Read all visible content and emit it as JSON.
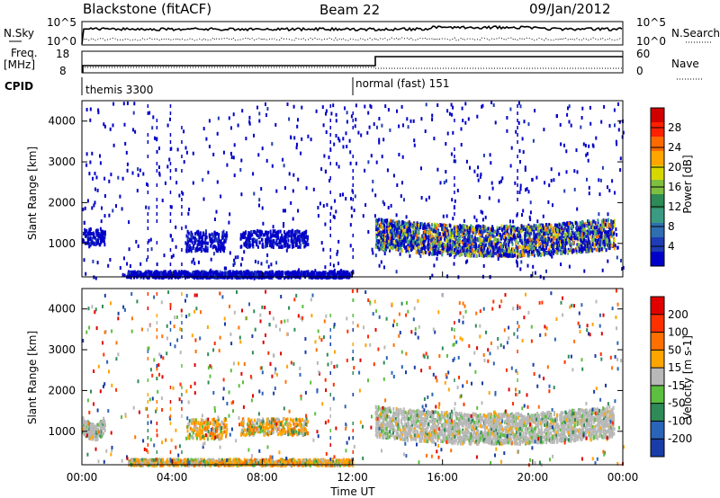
{
  "header": {
    "station": "Blackstone (fitACF)",
    "beam": "Beam 22",
    "date": "09/Jan/2012"
  },
  "params": {
    "nsky_label": "N.Sky",
    "nsky_ticks": [
      "10^5",
      "10^0"
    ],
    "nsearch_label": "N.Search",
    "nsearch_ticks": [
      "10^5",
      "10^0"
    ],
    "freq_label_1": "Freq.",
    "freq_label_2": "[MHz]",
    "freq_ticks": [
      "18",
      "8"
    ],
    "nave_label": "Nave",
    "nave_ticks": [
      "60",
      "0"
    ],
    "cpid_label": "CPID",
    "cpid_segments": [
      {
        "label": "themis 3300",
        "start_hour": 0
      },
      {
        "label": "normal (fast) 151",
        "start_hour": 12.0
      }
    ]
  },
  "chart_data": [
    {
      "type": "heatmap",
      "name": "power",
      "ylabel": "Slant Range [km]",
      "ylim": [
        180,
        4500
      ],
      "yticks": [
        "1000",
        "2000",
        "3000",
        "4000"
      ],
      "xlim": [
        0,
        24
      ],
      "colorbar": {
        "label": "Power [dB]",
        "ticks": [
          "28",
          "24",
          "20",
          "16",
          "12",
          "8",
          "4"
        ],
        "colors": [
          "#0000c8",
          "#1e3cb4",
          "#2f6eb0",
          "#3a9a82",
          "#2e8b57",
          "#7fbf3f",
          "#d7d700",
          "#ffa500",
          "#ff6a00",
          "#ff2000",
          "#d00000"
        ]
      },
      "echo_regions": [
        {
          "x": [
            0.0,
            1.0
          ],
          "range_km": [
            1000,
            1400
          ],
          "level": "low"
        },
        {
          "x": [
            4.6,
            6.4
          ],
          "range_km": [
            850,
            1350
          ],
          "level": "low"
        },
        {
          "x": [
            7.0,
            10.0
          ],
          "range_km": [
            950,
            1350
          ],
          "level": "low"
        },
        {
          "x": [
            13.0,
            23.6
          ],
          "range_km": [
            900,
            1650
          ],
          "level": "high"
        },
        {
          "x": [
            2.0,
            12.0
          ],
          "range_km": [
            200,
            350
          ],
          "level": "low"
        }
      ]
    },
    {
      "type": "heatmap",
      "name": "velocity",
      "ylabel": "Slant Range [km]",
      "ylim": [
        180,
        4500
      ],
      "yticks": [
        "1000",
        "2000",
        "3000",
        "4000"
      ],
      "xlim": [
        0,
        24
      ],
      "xticks": [
        "00:00",
        "04:00",
        "08:00",
        "12:00",
        "16:00",
        "20:00",
        "00:00"
      ],
      "xlabel": "Time UT",
      "colorbar": {
        "label": "Velocity [m s-1]",
        "ticks": [
          "200",
          "100",
          "50",
          "15",
          "-15",
          "-50",
          "-100",
          "-200"
        ],
        "colors": [
          "#1a3ca8",
          "#2a64b8",
          "#2e8b57",
          "#5cbf3f",
          "#b8b8b8",
          "#ffa500",
          "#ff7000",
          "#ff3000",
          "#e00000"
        ]
      },
      "echo_regions": [
        {
          "x": [
            0.0,
            1.0
          ],
          "range_km": [
            1000,
            1400
          ],
          "level": "ground"
        },
        {
          "x": [
            4.6,
            6.4
          ],
          "range_km": [
            850,
            1350
          ],
          "level": "mixed"
        },
        {
          "x": [
            7.0,
            10.0
          ],
          "range_km": [
            950,
            1350
          ],
          "level": "mixed"
        },
        {
          "x": [
            13.0,
            23.6
          ],
          "range_km": [
            900,
            1650
          ],
          "level": "ground"
        },
        {
          "x": [
            2.0,
            12.0
          ],
          "range_km": [
            200,
            350
          ],
          "level": "mixed"
        }
      ]
    }
  ]
}
